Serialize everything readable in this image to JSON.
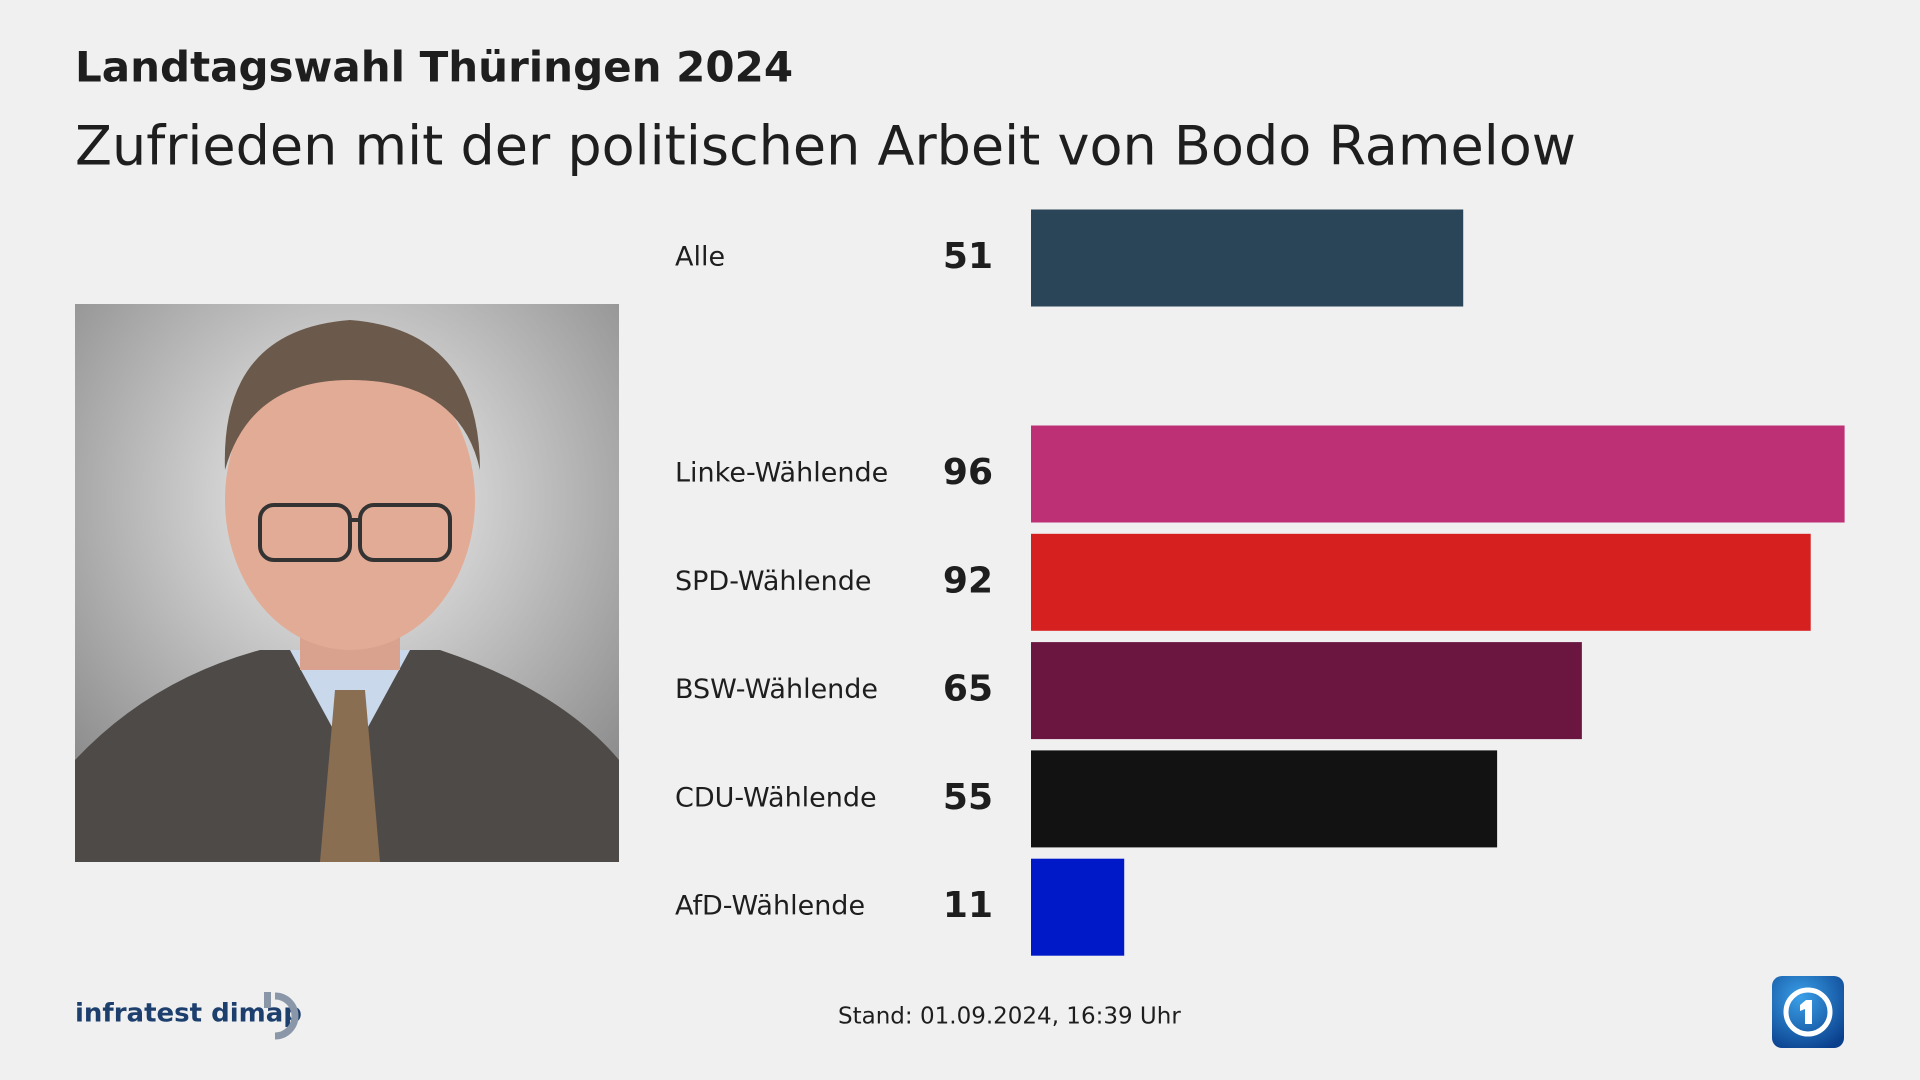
{
  "chart_data": {
    "type": "bar",
    "title": "Landtagswahl Thüringen 2024",
    "subtitle": "Zufrieden mit der politischen Arbeit von Bodo Ramelow",
    "categories": [
      "Alle",
      "Linke-Wählende",
      "SPD-Wählende",
      "BSW-Wählende",
      "CDU-Wählende",
      "AfD-Wählende"
    ],
    "values": [
      51,
      96,
      92,
      65,
      55,
      11
    ],
    "colors": [
      "#2a4558",
      "#be3075",
      "#d62020",
      "#6b1640",
      "#121212",
      "#0019c8"
    ],
    "source": "infratest dimap",
    "stand_label": "Stand:",
    "stand": "01.09.2024, 16:39 Uhr"
  }
}
